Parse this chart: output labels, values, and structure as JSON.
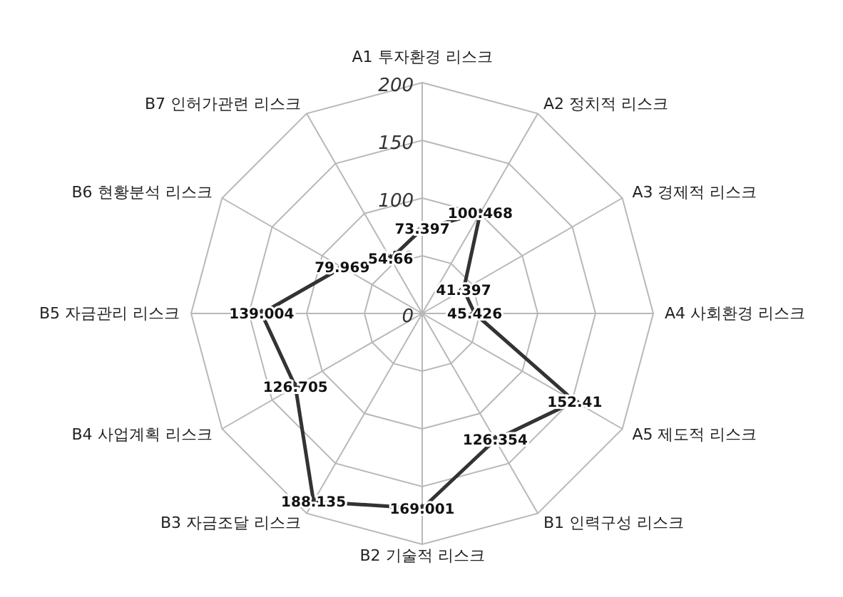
{
  "chart_data": {
    "type": "radar",
    "categories": [
      "A1 투자환경 리스크",
      "A2 정치적 리스크",
      "A3 경제적 리스크",
      "A4 사회환경 리스크",
      "A5 제도적 리스크",
      "B1 인력구성 리스크",
      "B2 기술적 리스크",
      "B3 자금조달 리스크",
      "B4 사업계획 리스크",
      "B5 자금관리 리스크",
      "B6 현황분석 리스크",
      "B7 인허가관련 리스크"
    ],
    "series": [
      {
        "color": "#333333",
        "values": [
          73.397,
          100.468,
          41.397,
          45.426,
          152.41,
          126.354,
          169.001,
          188.135,
          126.705,
          139.004,
          79.969,
          54.66
        ]
      }
    ],
    "ylim": [
      0,
      200
    ],
    "yticks": [
      0,
      50,
      100,
      150,
      200
    ],
    "grid": true,
    "data_labels": true,
    "marker": "diamond",
    "line_style": "solid",
    "legend": false
  }
}
